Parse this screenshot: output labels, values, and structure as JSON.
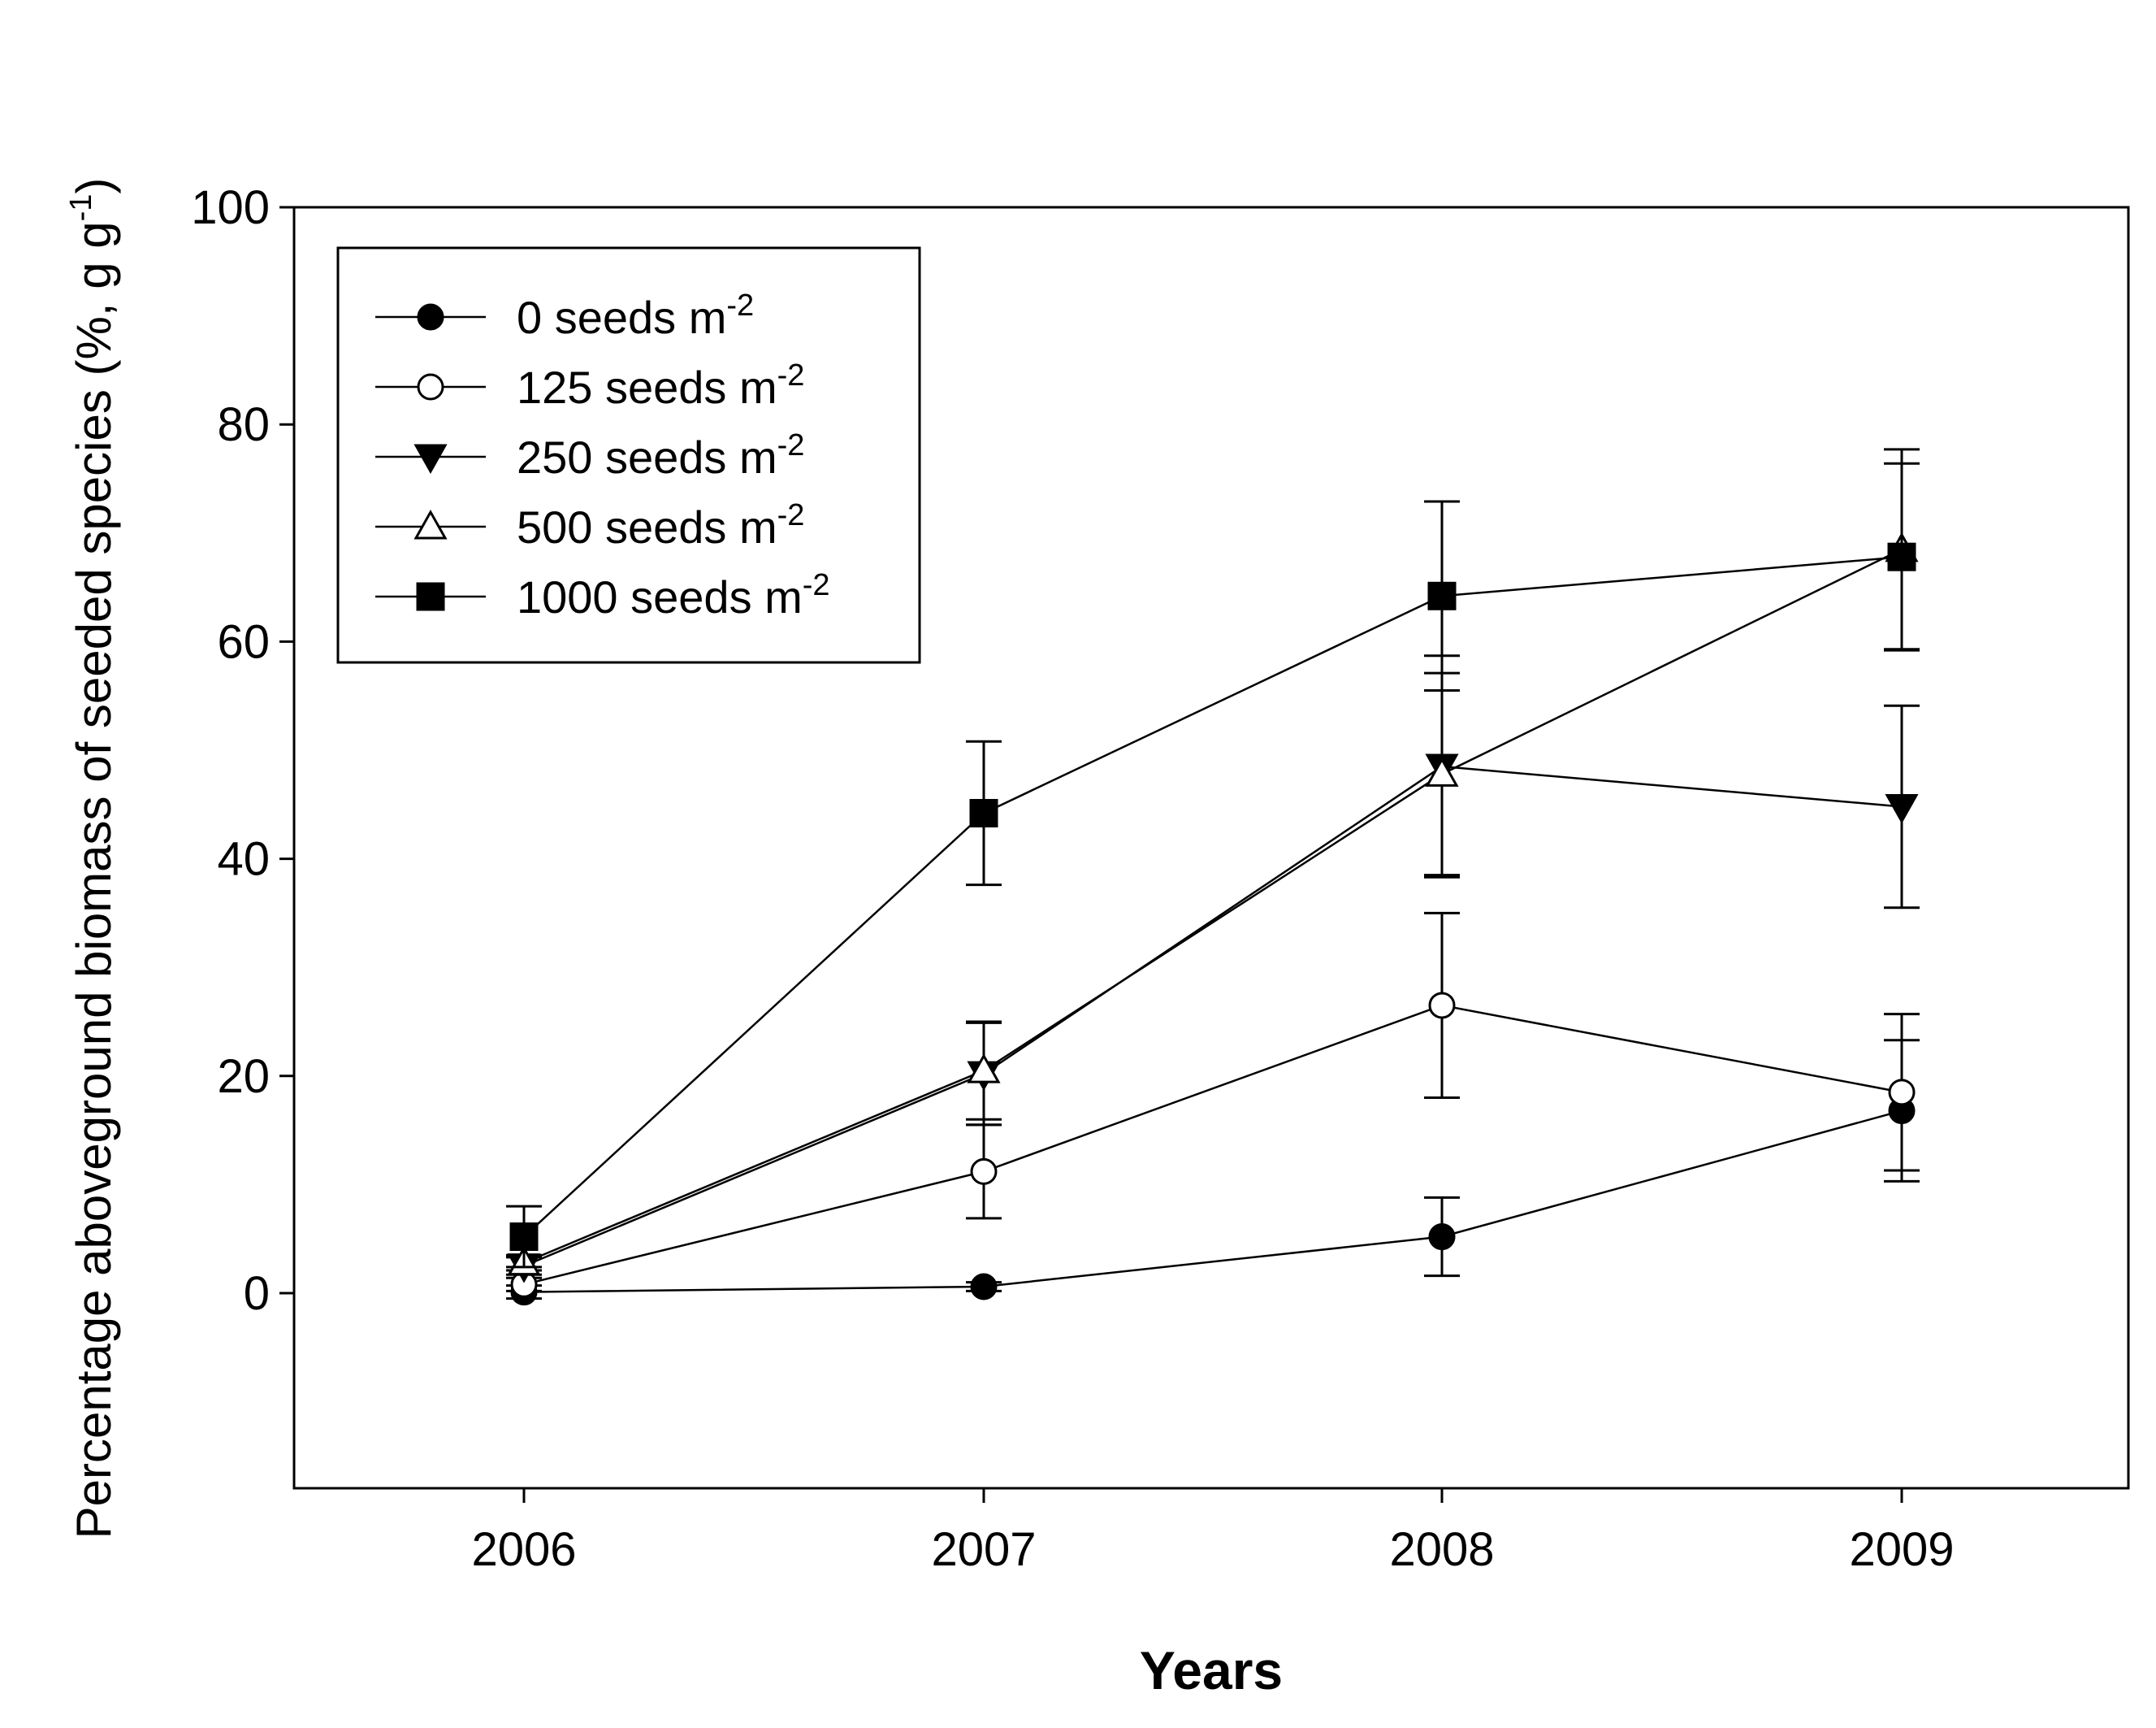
{
  "chart_data": {
    "type": "line",
    "title": "",
    "xlabel": "Years",
    "ylabel_main": "Percentage aboveground biomass of seeded species (%, g g",
    "ylabel_sup": "-1",
    "ylabel_end": ")",
    "x": [
      "2006",
      "2007",
      "2008",
      "2009"
    ],
    "ylim": [
      -18,
      100
    ],
    "yticks": [
      "0",
      "20",
      "40",
      "60",
      "80",
      "100"
    ],
    "series": [
      {
        "name": "0 seeds m",
        "sup": "-2",
        "marker": "circle-filled",
        "values": [
          0.1,
          0.6,
          5.2,
          16.8
        ],
        "errors": [
          0.6,
          0.4,
          3.6,
          6.5
        ]
      },
      {
        "name": "125 seeds m",
        "sup": "-2",
        "marker": "circle-open",
        "values": [
          0.8,
          11.2,
          26.5,
          18.5
        ],
        "errors": [
          0.6,
          4.3,
          8.5,
          7.2
        ]
      },
      {
        "name": "250 seeds m",
        "sup": "-2",
        "marker": "triangle-down-filled",
        "values": [
          2.5,
          20.2,
          48.5,
          44.8
        ],
        "errors": [
          0.8,
          4.7,
          10.2,
          9.3
        ]
      },
      {
        "name": "500 seeds m",
        "sup": "-2",
        "marker": "triangle-up-open",
        "values": [
          2.8,
          20.5,
          47.8,
          68.5
        ],
        "errors": [
          0.7,
          4.5,
          9.3,
          9.2
        ]
      },
      {
        "name": "1000 seeds m",
        "sup": "-2",
        "marker": "square-filled",
        "values": [
          5.2,
          44.2,
          64.2,
          67.8
        ],
        "errors": [
          2.8,
          6.6,
          8.7,
          8.6
        ]
      }
    ],
    "legend_position": "top-left"
  }
}
